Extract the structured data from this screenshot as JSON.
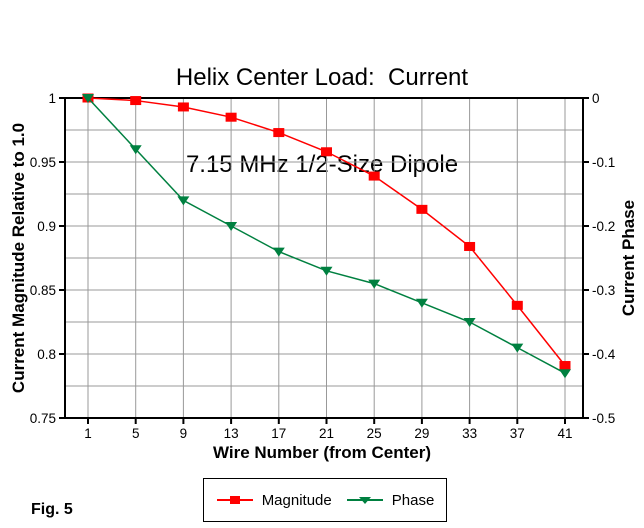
{
  "title": {
    "line1": "Helix Center Load:  Current",
    "line2": "7.15 MHz 1/2-Size Dipole"
  },
  "figure_caption": "Fig. 5",
  "legend": {
    "items": [
      {
        "label": "Magnitude",
        "color": "#ff0000",
        "marker": "square"
      },
      {
        "label": "Phase",
        "color": "#008040",
        "marker": "triangle-down"
      }
    ]
  },
  "colors": {
    "magnitude": "#ff0000",
    "phase": "#008040",
    "grid": "#999999",
    "frame": "#000000",
    "background": "#ffffff"
  },
  "chart_data": {
    "type": "line",
    "title": "Helix Center Load:  Current",
    "subtitle": "7.15 MHz 1/2-Size Dipole",
    "x": [
      1,
      5,
      9,
      13,
      17,
      21,
      25,
      29,
      33,
      37,
      41
    ],
    "x_tick_labels": [
      "1",
      "5",
      "9",
      "13",
      "17",
      "21",
      "25",
      "29",
      "33",
      "37",
      "41"
    ],
    "xlabel": "Wire Number (from Center)",
    "xlim": [
      -0.9,
      42.5
    ],
    "grid": true,
    "legend_position": "bottom-center",
    "left_axis": {
      "label": "Current Magnitude Relative to 1.0",
      "range": [
        0.75,
        1.0
      ],
      "tick_values": [
        1,
        0.95,
        0.9,
        0.85,
        0.8,
        0.75
      ],
      "tick_labels": [
        "1",
        "0.95",
        "0.9",
        "0.85",
        "0.8",
        "0.75"
      ],
      "grid_step": 0.025
    },
    "right_axis": {
      "label": "Current Phase",
      "range": [
        -0.5,
        0
      ],
      "tick_values": [
        0,
        -0.1,
        -0.2,
        -0.3,
        -0.4,
        -0.5
      ],
      "tick_labels": [
        "0",
        "-0.1",
        "-0.2",
        "-0.3",
        "-0.4",
        "-0.5"
      ],
      "grid_step": 0.05
    },
    "series": [
      {
        "name": "Magnitude",
        "axis": "left",
        "color": "#ff0000",
        "marker": "square",
        "values": [
          1.0,
          0.998,
          0.993,
          0.985,
          0.973,
          0.958,
          0.939,
          0.913,
          0.884,
          0.838,
          0.791
        ]
      },
      {
        "name": "Phase",
        "axis": "right",
        "color": "#008040",
        "marker": "triangle-down",
        "values": [
          0.0,
          -0.08,
          -0.16,
          -0.2,
          -0.24,
          -0.27,
          -0.29,
          -0.32,
          -0.35,
          -0.39,
          -0.43
        ]
      }
    ]
  }
}
